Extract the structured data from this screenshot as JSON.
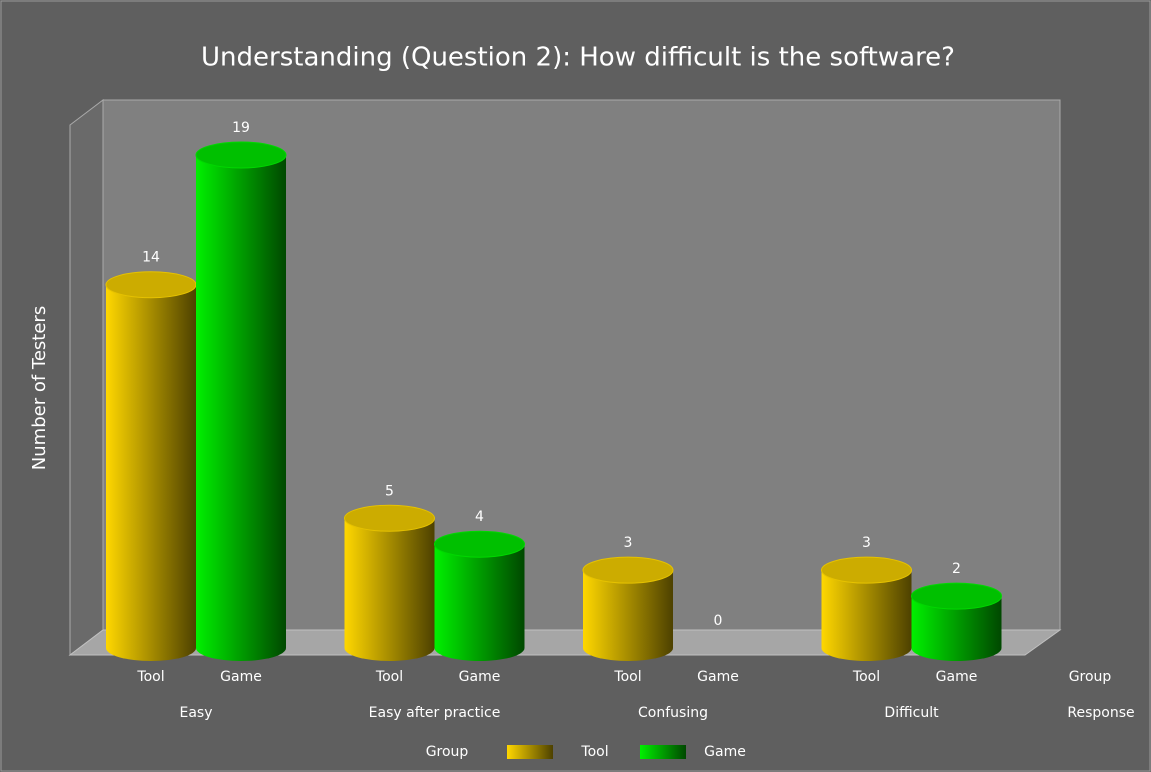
{
  "chart_data": {
    "type": "bar3d-cylinder",
    "title": "Understanding (Question 2): How difficult is the software?",
    "y_label": "Number of Testers",
    "x_label_inner": "Group",
    "x_label_outer": "Response",
    "legend_title": "Group",
    "categories": [
      "Easy",
      "Easy after practice",
      "Confusing",
      "Difficult"
    ],
    "series": [
      {
        "name": "Tool",
        "color": "#ffd700",
        "values": [
          14,
          5,
          3,
          3
        ]
      },
      {
        "name": "Game",
        "color": "#00f000",
        "values": [
          19,
          4,
          0,
          2
        ]
      }
    ]
  }
}
